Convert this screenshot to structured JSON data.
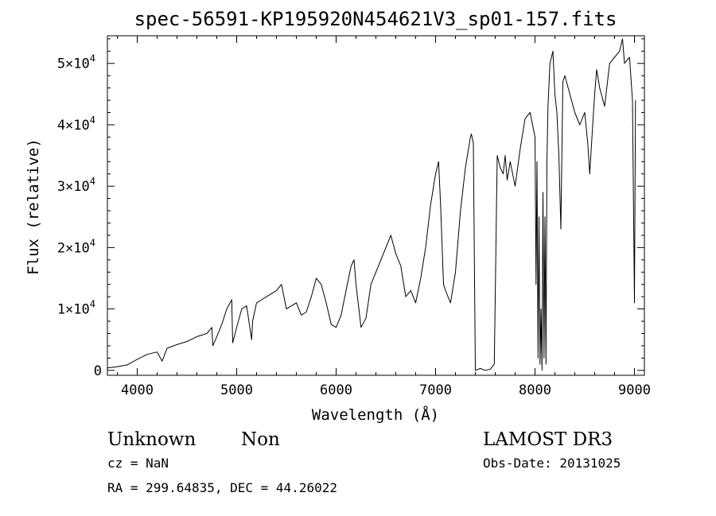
{
  "chart_data": {
    "type": "line",
    "title": "spec-56591-KP195920N454621V3_sp01-157.fits",
    "xlabel": "Wavelength (Å)",
    "ylabel": "Flux (relative)",
    "xlim": [
      3700,
      9100
    ],
    "ylim": [
      -800,
      54500
    ],
    "x_ticks": [
      4000,
      5000,
      6000,
      7000,
      8000,
      9000
    ],
    "y_ticks": [
      {
        "value": 0,
        "mantissa": "0",
        "exp": ""
      },
      {
        "value": 10000,
        "mantissa": "1×10",
        "exp": "4"
      },
      {
        "value": 20000,
        "mantissa": "2×10",
        "exp": "4"
      },
      {
        "value": 30000,
        "mantissa": "3×10",
        "exp": "4"
      },
      {
        "value": 40000,
        "mantissa": "4×10",
        "exp": "4"
      },
      {
        "value": 50000,
        "mantissa": "5×10",
        "exp": "4"
      }
    ],
    "grid": false,
    "series": [
      {
        "color": "#000000",
        "x": [
          3700,
          3800,
          3900,
          4000,
          4050,
          4100,
          4200,
          4250,
          4300,
          4400,
          4500,
          4600,
          4700,
          4750,
          4760,
          4800,
          4850,
          4900,
          4950,
          4960,
          5000,
          5050,
          5100,
          5150,
          5160,
          5200,
          5250,
          5300,
          5350,
          5400,
          5450,
          5500,
          5550,
          5600,
          5650,
          5700,
          5750,
          5800,
          5850,
          5900,
          5950,
          6000,
          6050,
          6100,
          6150,
          6180,
          6200,
          6250,
          6300,
          6350,
          6400,
          6450,
          6500,
          6550,
          6600,
          6650,
          6700,
          6750,
          6800,
          6850,
          6900,
          6950,
          7000,
          7030,
          7050,
          7080,
          7100,
          7150,
          7200,
          7250,
          7300,
          7350,
          7360,
          7380,
          7400,
          7450,
          7500,
          7550,
          7590,
          7600,
          7620,
          7650,
          7680,
          7700,
          7720,
          7750,
          7800,
          7850,
          7900,
          7950,
          8000,
          8010,
          8020,
          8030,
          8040,
          8050,
          8060,
          8070,
          8080,
          8090,
          8100,
          8110,
          8120,
          8130,
          8150,
          8180,
          8200,
          8220,
          8240,
          8260,
          8280,
          8300,
          8350,
          8400,
          8450,
          8500,
          8530,
          8550,
          8580,
          8600,
          8620,
          8650,
          8700,
          8750,
          8800,
          8850,
          8880,
          8900,
          8950,
          8980,
          9000,
          9010
        ],
        "y": [
          400,
          600,
          900,
          1800,
          2200,
          2600,
          3000,
          1500,
          3600,
          4200,
          4700,
          5500,
          6000,
          7000,
          4000,
          5500,
          7500,
          10000,
          11500,
          4500,
          7000,
          10000,
          10500,
          5000,
          8000,
          11000,
          11500,
          12000,
          12500,
          13000,
          14000,
          10000,
          10500,
          11000,
          9000,
          9500,
          12000,
          15000,
          14000,
          11000,
          7500,
          7000,
          9000,
          13000,
          17000,
          18000,
          14000,
          7000,
          8500,
          14000,
          16000,
          18000,
          20000,
          22000,
          19000,
          17000,
          12000,
          13000,
          11000,
          15000,
          20000,
          27000,
          32000,
          34000,
          27000,
          14000,
          13000,
          11000,
          16000,
          26000,
          33000,
          38000,
          38500,
          37000,
          0,
          300,
          0,
          200,
          1000,
          12000,
          35000,
          33000,
          32000,
          35000,
          31000,
          34000,
          30000,
          36000,
          41000,
          42000,
          38000,
          14000,
          34000,
          2000,
          25000,
          1000,
          10000,
          0,
          29000,
          2000,
          25000,
          1000,
          34000,
          43000,
          50000,
          52000,
          45000,
          42000,
          35000,
          23000,
          47000,
          48000,
          45000,
          42000,
          40000,
          42000,
          37000,
          32000,
          40000,
          45000,
          49000,
          46000,
          43000,
          50000,
          51000,
          52000,
          54000,
          50000,
          51000,
          44000,
          11000,
          44000
        ]
      }
    ]
  },
  "info": {
    "object_class": "Unknown",
    "subclass": "Non",
    "cz": "cz = NaN",
    "coords": "RA = 299.64835, DEC =  44.26022",
    "survey": "LAMOST DR3",
    "obs_date": "Obs-Date: 20131025"
  }
}
